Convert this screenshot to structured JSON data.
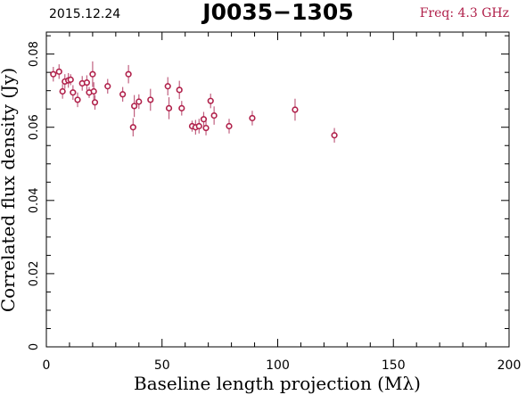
{
  "header": {
    "date": "2015.12.24",
    "source": "J0035−1305",
    "freq": "Freq: 4.3 GHz",
    "freq_color": "#b0204a"
  },
  "chart_data": {
    "type": "scatter",
    "title": "J0035−1305",
    "xlabel": "Baseline length projection (Mλ)",
    "ylabel": "Correlated flux density (Jy)",
    "xlim": [
      0,
      200
    ],
    "ylim": [
      0,
      0.086
    ],
    "x_ticks": [
      0,
      50,
      100,
      150,
      200
    ],
    "x_tick_labels": [
      "0",
      "50",
      "100",
      "150",
      "200"
    ],
    "y_ticks": [
      0,
      0.02,
      0.04,
      0.06,
      0.08
    ],
    "y_tick_labels": [
      "0",
      "0.02",
      "0.04",
      "0.06",
      "0.08"
    ],
    "grid": false,
    "marker_color": "#b0204a",
    "errorbar_color": "#c06080",
    "points": [
      {
        "x": 3.0,
        "y": 0.0745,
        "err": 0.002
      },
      {
        "x": 5.5,
        "y": 0.0752,
        "err": 0.002
      },
      {
        "x": 7.0,
        "y": 0.0698,
        "err": 0.002
      },
      {
        "x": 8.0,
        "y": 0.0725,
        "err": 0.002
      },
      {
        "x": 9.5,
        "y": 0.0728,
        "err": 0.002
      },
      {
        "x": 10.5,
        "y": 0.073,
        "err": 0.0015
      },
      {
        "x": 11.5,
        "y": 0.0695,
        "err": 0.002
      },
      {
        "x": 13.5,
        "y": 0.0675,
        "err": 0.002
      },
      {
        "x": 15.5,
        "y": 0.072,
        "err": 0.002
      },
      {
        "x": 17.5,
        "y": 0.0722,
        "err": 0.002
      },
      {
        "x": 18.5,
        "y": 0.0695,
        "err": 0.0015
      },
      {
        "x": 20.0,
        "y": 0.0745,
        "err": 0.0035
      },
      {
        "x": 20.5,
        "y": 0.0698,
        "err": 0.0025
      },
      {
        "x": 21.0,
        "y": 0.0668,
        "err": 0.002
      },
      {
        "x": 26.5,
        "y": 0.0712,
        "err": 0.002
      },
      {
        "x": 33.0,
        "y": 0.069,
        "err": 0.002
      },
      {
        "x": 35.5,
        "y": 0.0745,
        "err": 0.0025
      },
      {
        "x": 37.5,
        "y": 0.06,
        "err": 0.0025
      },
      {
        "x": 38.0,
        "y": 0.0658,
        "err": 0.003
      },
      {
        "x": 40.0,
        "y": 0.067,
        "err": 0.002
      },
      {
        "x": 45.0,
        "y": 0.0675,
        "err": 0.003
      },
      {
        "x": 52.5,
        "y": 0.0712,
        "err": 0.0025
      },
      {
        "x": 53.0,
        "y": 0.0652,
        "err": 0.003
      },
      {
        "x": 57.5,
        "y": 0.0702,
        "err": 0.0025
      },
      {
        "x": 58.5,
        "y": 0.0652,
        "err": 0.002
      },
      {
        "x": 63.0,
        "y": 0.0603,
        "err": 0.0015
      },
      {
        "x": 64.5,
        "y": 0.06,
        "err": 0.002
      },
      {
        "x": 66.0,
        "y": 0.0603,
        "err": 0.002
      },
      {
        "x": 68.0,
        "y": 0.0622,
        "err": 0.002
      },
      {
        "x": 69.0,
        "y": 0.0598,
        "err": 0.002
      },
      {
        "x": 71.0,
        "y": 0.0672,
        "err": 0.002
      },
      {
        "x": 72.5,
        "y": 0.0632,
        "err": 0.0025
      },
      {
        "x": 79.0,
        "y": 0.0603,
        "err": 0.002
      },
      {
        "x": 89.0,
        "y": 0.0625,
        "err": 0.002
      },
      {
        "x": 107.5,
        "y": 0.0648,
        "err": 0.003
      },
      {
        "x": 124.5,
        "y": 0.0578,
        "err": 0.002
      }
    ]
  }
}
